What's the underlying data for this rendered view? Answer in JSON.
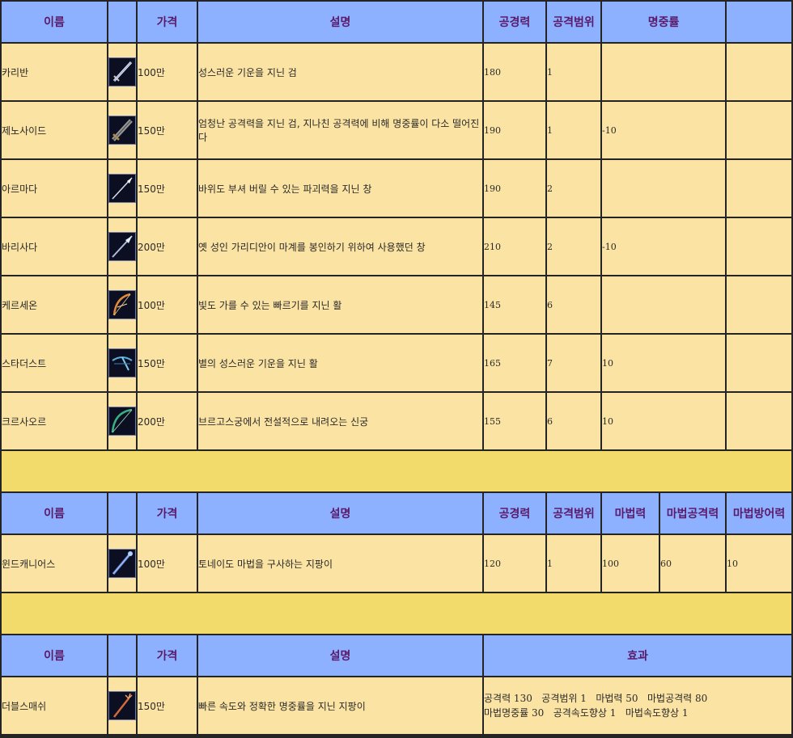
{
  "section1": {
    "headers": [
      "이름",
      "",
      "가격",
      "설명",
      "공경력",
      "공격범위",
      "명중률",
      ""
    ],
    "rows": [
      {
        "name": "카리반",
        "price": "100만",
        "desc": "성스러운 기운을 지닌 검",
        "atk": "180",
        "range": "1",
        "acc": "",
        "icon": "sword-icon"
      },
      {
        "name": "제노사이드",
        "price": "150만",
        "desc": "엄청난 공격력을 지닌 검, 지나친 공격력에 비해 명중률이 다소 떨어진다",
        "atk": "190",
        "range": "1",
        "acc": "-10",
        "icon": "greatsword-icon"
      },
      {
        "name": "아르마다",
        "price": "150만",
        "desc": "바위도 부셔 버릴 수 있는 파괴력을 지닌 창",
        "atk": "190",
        "range": "2",
        "acc": "",
        "icon": "spear-icon"
      },
      {
        "name": "바리사다",
        "price": "200만",
        "desc": "옛 성인 가리디안이 마계를 봉인하기 위하여 사용했던 창",
        "atk": "210",
        "range": "2",
        "acc": "-10",
        "icon": "lance-icon"
      },
      {
        "name": "케르세온",
        "price": "100만",
        "desc": "빛도 가를 수 있는 빠르기를 지닌 활",
        "atk": "145",
        "range": "6",
        "acc": "",
        "icon": "bow-icon"
      },
      {
        "name": "스타더스트",
        "price": "150만",
        "desc": "별의 성스러운 기운을 지닌 활",
        "atk": "165",
        "range": "7",
        "acc": "10",
        "icon": "crossbow-icon"
      },
      {
        "name": "크르사오르",
        "price": "200만",
        "desc": "브르고스궁에서 전설적으로 내려오는 신궁",
        "atk": "155",
        "range": "6",
        "acc": "10",
        "icon": "longbow-icon"
      }
    ]
  },
  "section2": {
    "headers": [
      "이름",
      "",
      "가격",
      "설명",
      "공경력",
      "공격범위",
      "마법력",
      "마법공격력",
      "마법방어력"
    ],
    "rows": [
      {
        "name": "윈드캐니어스",
        "price": "100만",
        "desc": "토네이도 마법을 구사하는 지팡이",
        "atk": "120",
        "range": "1",
        "magic": "100",
        "matk": "60",
        "mdef": "10",
        "icon": "staff-icon"
      }
    ]
  },
  "section3": {
    "headers": [
      "이름",
      "",
      "가격",
      "설명",
      "효과"
    ],
    "rows": [
      {
        "name": "더블스매쉬",
        "price": "150만",
        "desc": "빠른 속도와 정확한 명중률을 지닌 지팡이",
        "effect1": "공격력 130   공격범위 1   마법력 50   마법공격력 80",
        "effect2": "마법명중률 30   공격속도향상 1   마법속도향상 1",
        "icon": "trident-staff-icon"
      }
    ]
  },
  "colors": {
    "header_bg": "#8db0ff",
    "header_text": "#5a1a6a",
    "row_bg": "#fbe3a3",
    "separator_bg": "#f2db6a",
    "border": "#242424"
  }
}
